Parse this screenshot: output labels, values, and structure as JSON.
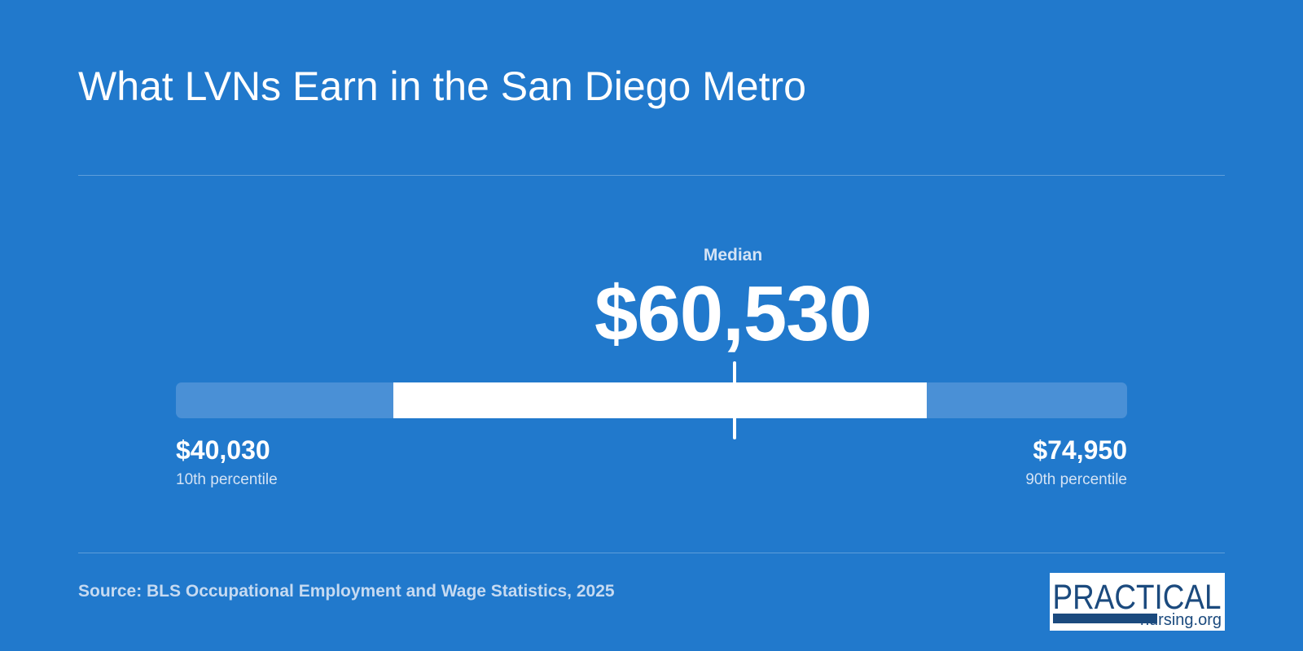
{
  "header": {
    "title": "What LVNs Earn in the San Diego Metro"
  },
  "chart_data": {
    "type": "range",
    "median_label": "Median",
    "median": 60530,
    "median_display": "$60,530",
    "p10": 40030,
    "p10_display": "$40,030",
    "p10_label": "10th percentile",
    "p90": 74950,
    "p90_display": "$74,950",
    "p90_label": "90th percentile",
    "iqr_low": 48000,
    "iqr_high": 67600,
    "colors": {
      "background": "#2179cc",
      "track": "#4a90d6",
      "highlight": "#ffffff"
    }
  },
  "footer": {
    "source": "Source: BLS Occupational Employment and Wage Statistics, 2025"
  },
  "logo": {
    "line1": "PRACTICAL",
    "line2": "nursing.org",
    "color": "#1b4a7e"
  }
}
